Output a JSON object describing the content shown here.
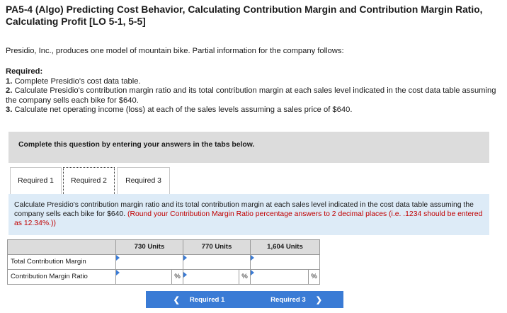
{
  "title": "PA5-4 (Algo) Predicting Cost Behavior, Calculating Contribution Margin and Contribution Margin Ratio, Calculating Profit [LO 5-1, 5-5]",
  "intro": "Presidio, Inc., produces one model of mountain bike. Partial information for the company follows:",
  "required": {
    "heading": "Required:",
    "items": [
      {
        "num": "1.",
        "text": " Complete Presidio's cost data table."
      },
      {
        "num": "2.",
        "text": " Calculate Presidio's contribution margin ratio and its total contribution margin at each sales level indicated in the cost data table assuming the company sells each bike for $640."
      },
      {
        "num": "3.",
        "text": " Calculate net operating income (loss) at each of the sales levels assuming a sales price of $640."
      }
    ]
  },
  "complete_prompt": "Complete this question by entering your answers in the tabs below.",
  "tabs": [
    "Required 1",
    "Required 2",
    "Required 3"
  ],
  "active_tab": "Required 2",
  "instruction": {
    "text": "Calculate Presidio's contribution margin ratio and its total contribution margin at each sales level indicated in the cost data table assuming the company sells each bike for $640.",
    "note": "(Round your Contribution Margin Ratio percentage answers to 2 decimal places (i.e. .1234 should be entered as 12.34%.))"
  },
  "table": {
    "columns": [
      "730 Units",
      "770 Units",
      "1,604 Units"
    ],
    "rows": [
      {
        "label": "Total Contribution Margin",
        "values": [
          "",
          "",
          ""
        ]
      },
      {
        "label": "Contribution Margin Ratio",
        "values": [
          "",
          "",
          ""
        ],
        "suffix": "%"
      }
    ]
  },
  "nav": {
    "prev_label": "Required 1",
    "next_label": "Required 3",
    "prev_icon": "chevron-left-icon",
    "next_icon": "chevron-right-icon",
    "color": "#3a7bd5"
  }
}
